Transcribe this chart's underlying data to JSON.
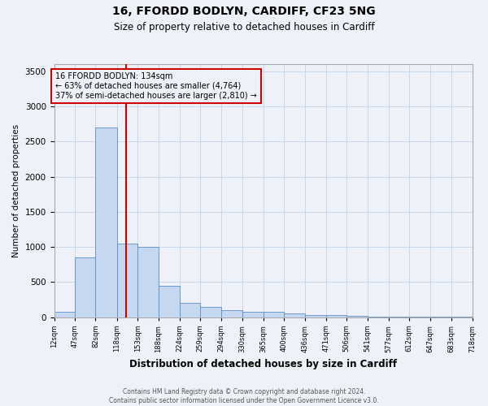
{
  "title_line1": "16, FFORDD BODLYN, CARDIFF, CF23 5NG",
  "title_line2": "Size of property relative to detached houses in Cardiff",
  "xlabel": "Distribution of detached houses by size in Cardiff",
  "ylabel": "Number of detached properties",
  "bin_edges": [
    12,
    47,
    82,
    118,
    153,
    188,
    224,
    259,
    294,
    330,
    365,
    400,
    436,
    471,
    506,
    541,
    577,
    612,
    647,
    683,
    718
  ],
  "bar_heights": [
    75,
    850,
    2700,
    1050,
    1000,
    450,
    200,
    150,
    100,
    75,
    75,
    50,
    30,
    30,
    20,
    10,
    10,
    5,
    5,
    5
  ],
  "bar_color": "#c5d8f0",
  "bar_edge_color": "#5b8ec4",
  "grid_color": "#c8d8ea",
  "property_line_x": 134,
  "property_line_color": "#cc0000",
  "annotation_text_line1": "16 FFORDD BODLYN: 134sqm",
  "annotation_text_line2": "← 63% of detached houses are smaller (4,764)",
  "annotation_text_line3": "37% of semi-detached houses are larger (2,810) →",
  "annotation_box_color": "#cc0000",
  "ylim": [
    0,
    3600
  ],
  "yticks": [
    0,
    500,
    1000,
    1500,
    2000,
    2500,
    3000,
    3500
  ],
  "footer_line1": "Contains HM Land Registry data © Crown copyright and database right 2024.",
  "footer_line2": "Contains public sector information licensed under the Open Government Licence v3.0.",
  "bg_color": "#eef2f8",
  "plot_bg_color": "#eef2f8"
}
